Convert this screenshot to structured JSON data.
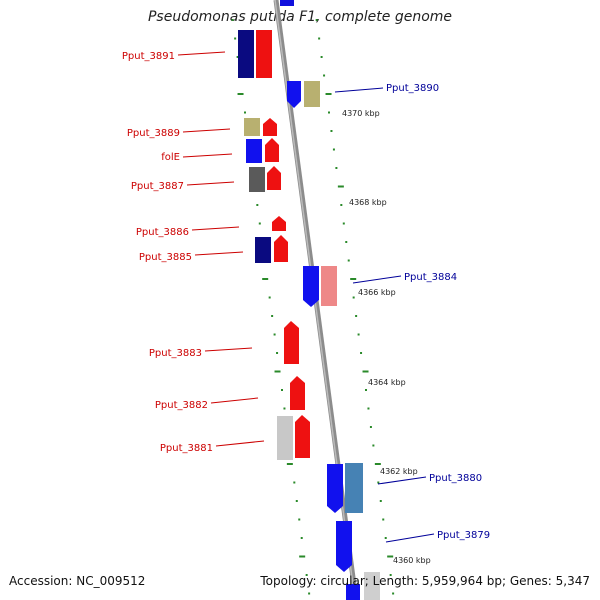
{
  "title": "Pseudomonas putida F1, complete genome",
  "footer": {
    "accession": "Accession: NC_009512",
    "summary": "Topology: circular; Length: 5,959,964 bp; Genes: 5,347"
  },
  "colors": {
    "left_label": "#cc0000",
    "right_label": "#000099",
    "tick": "#2a8a2a",
    "backbone": "#888888"
  },
  "scale_labels": [
    "4370 kbp",
    "4368 kbp",
    "4366 kbp",
    "4364 kbp",
    "4362 kbp",
    "4360 kbp"
  ],
  "left_genes": [
    "Pput_3891",
    "Pput_3889",
    "folE",
    "Pput_3887",
    "Pput_3886",
    "Pput_3885",
    "Pput_3883",
    "Pput_3882",
    "Pput_3881"
  ],
  "right_genes": [
    "Pput_3890",
    "Pput_3884",
    "Pput_3880",
    "Pput_3879"
  ]
}
